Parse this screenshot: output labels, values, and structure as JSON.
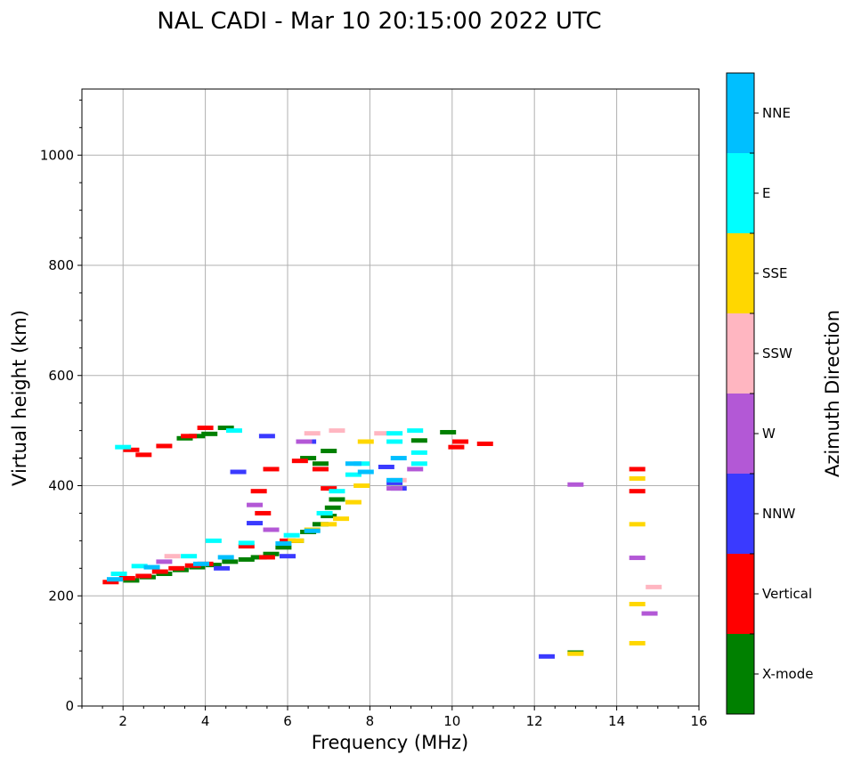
{
  "chart_data": {
    "type": "scatter",
    "title": "NAL CADI - Mar 10 20:15:00 2022 UTC",
    "xlabel": "Frequency (MHz)",
    "ylabel": "Virtual height (km)",
    "xlim": [
      1,
      16
    ],
    "ylim": [
      0,
      1120
    ],
    "xticks": [
      2,
      4,
      6,
      8,
      10,
      12,
      14,
      16
    ],
    "yticks": [
      0,
      200,
      400,
      600,
      800,
      1000
    ],
    "grid": true,
    "colorbar": {
      "title": "Azimuth Direction",
      "categories": [
        {
          "name": "X-mode",
          "color": "#008000"
        },
        {
          "name": "Vertical",
          "color": "#ff0000"
        },
        {
          "name": "NNW",
          "color": "#3a3aff"
        },
        {
          "name": "W",
          "color": "#b358d6"
        },
        {
          "name": "SSW",
          "color": "#ffb6c1"
        },
        {
          "name": "SSE",
          "color": "#ffd700"
        },
        {
          "name": "E",
          "color": "#00ffff"
        },
        {
          "name": "NNE",
          "color": "#00bfff"
        }
      ]
    },
    "series": [
      {
        "name": "X-mode",
        "points": [
          [
            2.2,
            228
          ],
          [
            2.6,
            234
          ],
          [
            3.0,
            240
          ],
          [
            3.4,
            247
          ],
          [
            3.8,
            252
          ],
          [
            4.2,
            256
          ],
          [
            4.6,
            262
          ],
          [
            5.0,
            266
          ],
          [
            5.3,
            270
          ],
          [
            5.6,
            276
          ],
          [
            5.9,
            288
          ],
          [
            6.2,
            300
          ],
          [
            6.5,
            316
          ],
          [
            6.8,
            330
          ],
          [
            7.0,
            345
          ],
          [
            7.1,
            360
          ],
          [
            7.2,
            375
          ],
          [
            3.5,
            486
          ],
          [
            3.8,
            490
          ],
          [
            4.1,
            494
          ],
          [
            4.5,
            505
          ],
          [
            6.5,
            450
          ],
          [
            6.8,
            440
          ],
          [
            7.0,
            463
          ],
          [
            9.2,
            482
          ],
          [
            9.9,
            497
          ],
          [
            13.0,
            97
          ]
        ]
      },
      {
        "name": "Vertical",
        "points": [
          [
            1.7,
            225
          ],
          [
            2.1,
            232
          ],
          [
            2.5,
            236
          ],
          [
            2.9,
            244
          ],
          [
            3.3,
            250
          ],
          [
            3.7,
            255
          ],
          [
            4.0,
            258
          ],
          [
            5.0,
            290
          ],
          [
            5.5,
            270
          ],
          [
            6.0,
            300
          ],
          [
            5.3,
            390
          ],
          [
            5.6,
            430
          ],
          [
            6.3,
            445
          ],
          [
            6.8,
            430
          ],
          [
            7.0,
            395
          ],
          [
            2.2,
            465
          ],
          [
            2.5,
            456
          ],
          [
            3.0,
            472
          ],
          [
            3.6,
            490
          ],
          [
            4.0,
            505
          ],
          [
            10.1,
            470
          ],
          [
            10.2,
            480
          ],
          [
            10.8,
            476
          ],
          [
            14.5,
            430
          ],
          [
            14.5,
            390
          ],
          [
            5.4,
            350
          ]
        ]
      },
      {
        "name": "NNW",
        "points": [
          [
            4.4,
            250
          ],
          [
            4.8,
            425
          ],
          [
            5.2,
            332
          ],
          [
            5.5,
            490
          ],
          [
            6.0,
            272
          ],
          [
            6.5,
            480
          ],
          [
            8.4,
            434
          ],
          [
            8.6,
            405
          ],
          [
            8.7,
            395
          ],
          [
            12.3,
            90
          ]
        ]
      },
      {
        "name": "W",
        "points": [
          [
            3.0,
            262
          ],
          [
            5.2,
            365
          ],
          [
            5.6,
            320
          ],
          [
            6.4,
            480
          ],
          [
            8.6,
            395
          ],
          [
            9.1,
            430
          ],
          [
            13.0,
            402
          ],
          [
            14.5,
            269
          ],
          [
            14.8,
            168
          ]
        ]
      },
      {
        "name": "SSW",
        "points": [
          [
            3.2,
            272
          ],
          [
            6.6,
            495
          ],
          [
            7.2,
            500
          ],
          [
            8.3,
            495
          ],
          [
            14.9,
            216
          ],
          [
            8.7,
            410
          ]
        ]
      },
      {
        "name": "SSE",
        "points": [
          [
            6.2,
            300
          ],
          [
            6.6,
            320
          ],
          [
            7.0,
            330
          ],
          [
            7.3,
            340
          ],
          [
            7.6,
            370
          ],
          [
            7.8,
            400
          ],
          [
            7.9,
            480
          ],
          [
            14.5,
            413
          ],
          [
            14.5,
            330
          ],
          [
            14.5,
            185
          ],
          [
            14.5,
            114
          ],
          [
            13.0,
            95
          ]
        ]
      },
      {
        "name": "E",
        "points": [
          [
            1.9,
            240
          ],
          [
            2.4,
            254
          ],
          [
            3.6,
            272
          ],
          [
            4.2,
            300
          ],
          [
            5.0,
            296
          ],
          [
            6.1,
            310
          ],
          [
            6.9,
            350
          ],
          [
            7.2,
            390
          ],
          [
            7.6,
            420
          ],
          [
            7.8,
            440
          ],
          [
            8.6,
            480
          ],
          [
            8.6,
            495
          ],
          [
            9.1,
            500
          ],
          [
            9.2,
            460
          ],
          [
            9.2,
            440
          ],
          [
            4.7,
            500
          ],
          [
            2.0,
            470
          ]
        ]
      },
      {
        "name": "NNE",
        "points": [
          [
            1.8,
            230
          ],
          [
            2.7,
            252
          ],
          [
            3.9,
            258
          ],
          [
            4.5,
            270
          ],
          [
            5.9,
            295
          ],
          [
            6.6,
            318
          ],
          [
            7.6,
            440
          ],
          [
            7.9,
            425
          ],
          [
            8.7,
            450
          ],
          [
            8.6,
            410
          ]
        ]
      }
    ]
  }
}
